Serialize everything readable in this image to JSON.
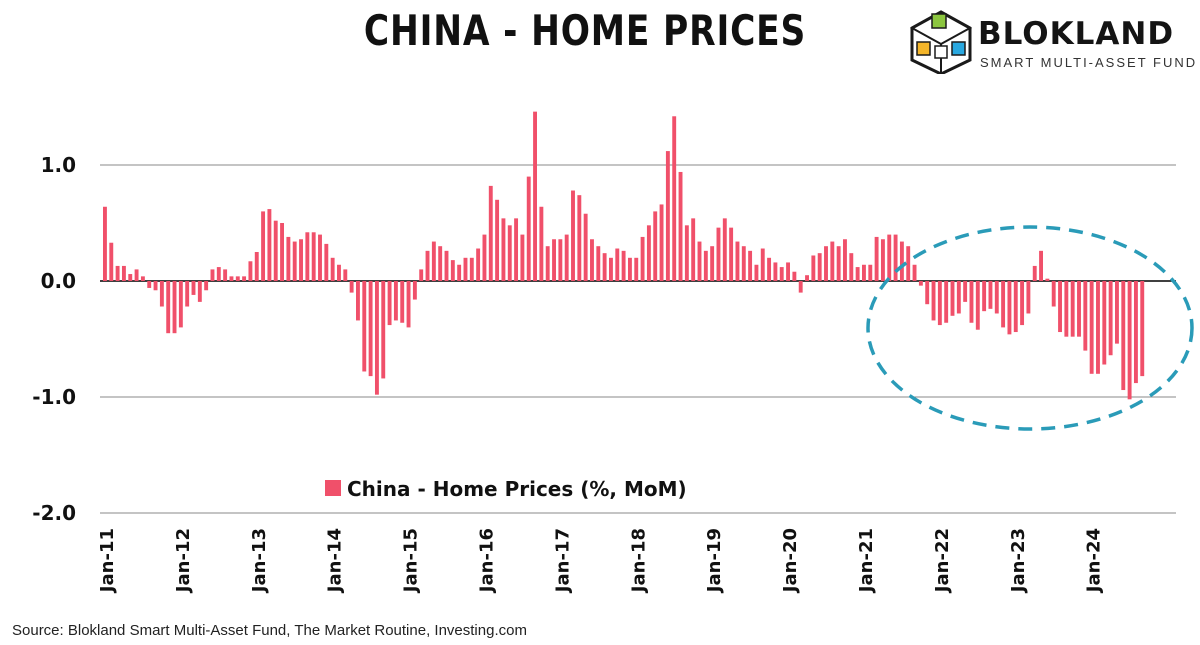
{
  "header": {
    "title": "CHINA - HOME PRICES",
    "brand_name": "BLOKLAND",
    "brand_subtitle": "SMART MULTI-ASSET FUND"
  },
  "footer": {
    "source": "Source: Blokland Smart Multi-Asset Fund, The Market Routine, Investing.com"
  },
  "colors": {
    "bar": "#f0506a",
    "annotation": "#2a9bb8",
    "gridline": "#8a8a8a",
    "zero_line": "#000000"
  },
  "chart_data": {
    "type": "bar",
    "title": "CHINA - HOME PRICES",
    "xlabel": "",
    "ylabel": "",
    "ylim": [
      -2.0,
      1.5
    ],
    "grid": true,
    "y_ticks": [
      1.0,
      0.0,
      -1.0,
      -2.0
    ],
    "y_tick_labels": [
      "1.0",
      "0.0",
      "-1.0",
      "-2.0"
    ],
    "x_tick_labels": [
      "Jan-11",
      "Jan-12",
      "Jan-13",
      "Jan-14",
      "Jan-15",
      "Jan-16",
      "Jan-17",
      "Jan-18",
      "Jan-19",
      "Jan-20",
      "Jan-21",
      "Jan-22",
      "Jan-23",
      "Jan-24"
    ],
    "legend": {
      "label": "China - Home Prices (%, MoM)",
      "position": "bottom-center"
    },
    "annotation": "dashed ellipse highlighting the 2022-2024 decline",
    "series": [
      {
        "name": "China - Home Prices (%, MoM)",
        "start": "Jan-11",
        "frequency": "monthly",
        "values": [
          0.64,
          0.33,
          0.13,
          0.13,
          0.06,
          0.1,
          0.04,
          -0.06,
          -0.08,
          -0.22,
          -0.45,
          -0.45,
          -0.4,
          -0.22,
          -0.12,
          -0.18,
          -0.08,
          0.1,
          0.12,
          0.1,
          0.04,
          0.04,
          0.04,
          0.17,
          0.25,
          0.6,
          0.62,
          0.52,
          0.5,
          0.38,
          0.34,
          0.36,
          0.42,
          0.42,
          0.4,
          0.32,
          0.2,
          0.14,
          0.1,
          -0.1,
          -0.34,
          -0.78,
          -0.82,
          -0.98,
          -0.84,
          -0.38,
          -0.34,
          -0.36,
          -0.4,
          -0.16,
          0.1,
          0.26,
          0.34,
          0.3,
          0.26,
          0.18,
          0.14,
          0.2,
          0.2,
          0.28,
          0.4,
          0.82,
          0.7,
          0.54,
          0.48,
          0.54,
          0.4,
          0.9,
          1.46,
          0.64,
          0.3,
          0.36,
          0.36,
          0.4,
          0.78,
          0.74,
          0.58,
          0.36,
          0.3,
          0.24,
          0.2,
          0.28,
          0.26,
          0.2,
          0.2,
          0.38,
          0.48,
          0.6,
          0.66,
          1.12,
          1.42,
          0.94,
          0.48,
          0.54,
          0.34,
          0.26,
          0.3,
          0.46,
          0.54,
          0.46,
          0.34,
          0.3,
          0.26,
          0.14,
          0.28,
          0.2,
          0.16,
          0.12,
          0.16,
          0.08,
          -0.1,
          0.05,
          0.22,
          0.24,
          0.3,
          0.34,
          0.3,
          0.36,
          0.24,
          0.12,
          0.14,
          0.14,
          0.38,
          0.36,
          0.4,
          0.4,
          0.34,
          0.3,
          0.14,
          -0.04,
          -0.2,
          -0.34,
          -0.38,
          -0.36,
          -0.3,
          -0.28,
          -0.18,
          -0.36,
          -0.42,
          -0.26,
          -0.24,
          -0.28,
          -0.4,
          -0.46,
          -0.44,
          -0.38,
          -0.28,
          0.13,
          0.26,
          0.02,
          -0.22,
          -0.44,
          -0.48,
          -0.48,
          -0.48,
          -0.6,
          -0.8,
          -0.8,
          -0.72,
          -0.64,
          -0.54,
          -0.94,
          -1.02,
          -0.88,
          -0.82
        ]
      }
    ]
  }
}
